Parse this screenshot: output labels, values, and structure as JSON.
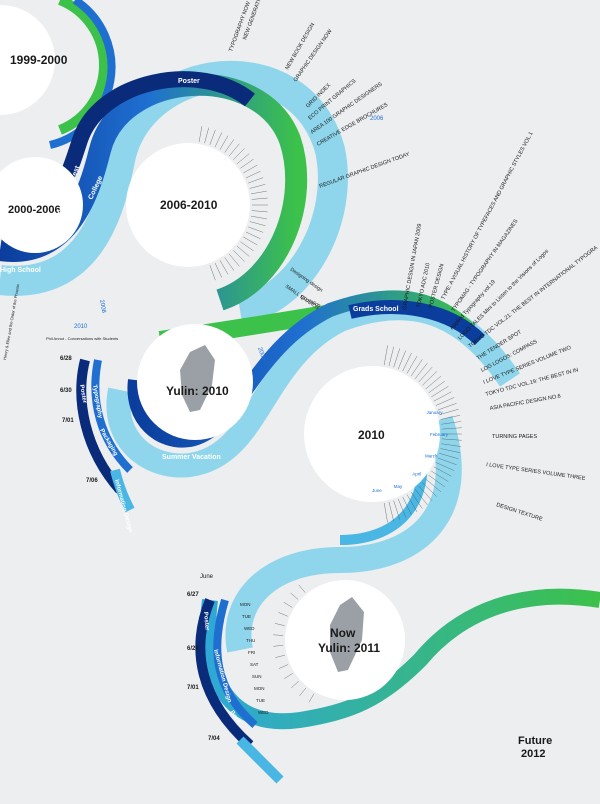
{
  "colors": {
    "background": "#eceef0",
    "dark_blue": "#0b3d9c",
    "navy": "#0a2a7a",
    "mid_blue": "#1f6fd1",
    "light_blue": "#8fd6ec",
    "pale_blue": "#bfe8f4",
    "green": "#3cc14a",
    "teal": "#2fb3b7"
  },
  "circles": {
    "c1999": "1999-2000",
    "c2000": "2000-2006",
    "c2006": "2006-2010",
    "c2010": "2010",
    "yulin2010": "Yulin: 2010",
    "now_line1": "Now",
    "now_line2": "Yulin: 2011",
    "future_line1": "Future",
    "future_line2": "2012"
  },
  "band_labels": {
    "poster_top": "Poster",
    "design_contest": "Design Contest",
    "college": "College",
    "high_school": "High School",
    "grads_school": "Grads School",
    "summer_vacation": "Summer Vacation",
    "poster_left": "Poster",
    "typography": "Typography",
    "packaging": "Packaging",
    "information_design": "Information Design",
    "poster_bottom": "Poster",
    "information_bottom": "Information Design",
    "book": "Book"
  },
  "book_titles": [
    "TYPOGRAPHY NOW THE NEXT WAVE",
    "NEW GENERATION OF DESIGN",
    "NEW BOOK DESIGN",
    "GRAPHIC DESIGN NOW",
    "GRID INDEX",
    "ECO PRINT GRAPHICS",
    "AREA 100 GRAPHIC DESIGNERS",
    "CREATIVE EDGE BROCHURES",
    "REGULAR GRAPHIC DESIGN TODAY",
    "GRAPHIC DESIGN IN JAPAN 2009",
    "TOKYO ADC 2010",
    "POSTER DESIGN",
    "TYPE: A VISUAL HISTORY OF TYPEFACES AND GRAPHIC STYLES VOL.1",
    "TYPOMAG - TYPOGRAPHY IN MAGAZINES",
    "Applied Typography vol.19",
    "LOGO TALES Mini to Listen to the Visions of Logos",
    "TOKYO TDC VOL.21: THE BEST IN INTERNATIONAL TYPOGRA",
    "THE TENDER SPOT",
    "LOG LOGOS: COMPASS",
    "I LOVE TYPE SERIES VOLUME TWO",
    "TOKYO TDC VOL.19: THE BEST IN IN",
    "ASIA PACIFIC DESIGN NO.6",
    "TURNING PAGES",
    "I LOVE TYPE SERIES VOLUME THREE",
    "DESIGN TEXTURE"
  ],
  "side_notes": {
    "designing_design": "Designing design",
    "small_studios": "SMALL STUDIOS",
    "quotation": "Quotation",
    "year_2006": "2006",
    "year_2008": "2008",
    "year_2009": "2009",
    "year_2010": "2010",
    "phil_annot": "Phil Annot - Conversations with Students",
    "henry_note": "Henry & Ellen and the Order of the Phoenix"
  },
  "dates": {
    "d628": "6/28",
    "d630": "6/30",
    "d71": "7/01",
    "d76": "7/06",
    "june": "June",
    "d627": "6/27",
    "d629": "6/29",
    "d701": "7/01",
    "d704": "7/04"
  },
  "weekdays": [
    "MON",
    "TUE",
    "WED",
    "THU",
    "FRI",
    "SAT",
    "SUN",
    "MON",
    "TUE",
    "WED"
  ],
  "months": [
    "January",
    "February",
    "March",
    "April",
    "May",
    "June"
  ]
}
